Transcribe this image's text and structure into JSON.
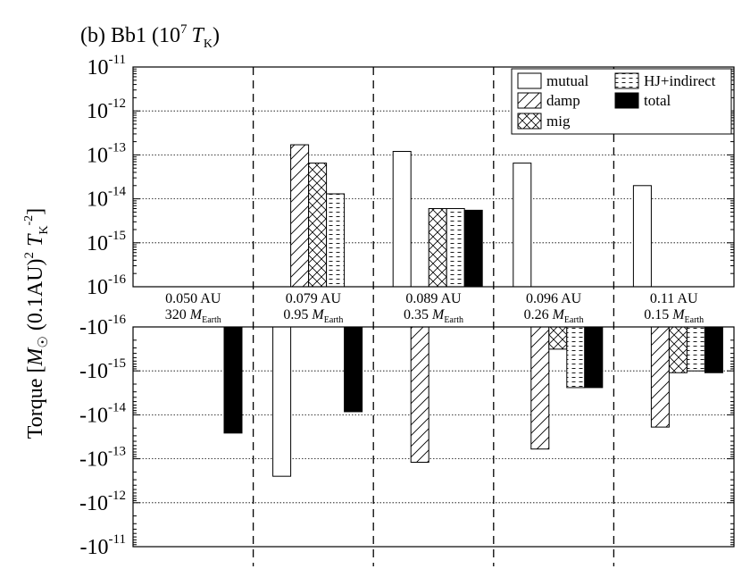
{
  "chart_data": {
    "type": "bar",
    "title": "(b) Bb1 (10",
    "title_exp": "7",
    "title_unit_italic": "T",
    "title_unit_sub": "K",
    "title_close": ")",
    "ylabel": {
      "prefix": "Torque [",
      "sun_symbol": "M",
      "sun_sub": "☉",
      "middle": " (0.1AU)",
      "middle_sup": "2",
      "unit_italic": " T",
      "unit_sub": "K",
      "unit_sup": "-2",
      "close": "]"
    },
    "yscale": "log",
    "upper_panel": {
      "ylim_exponents": [
        -16,
        -11
      ],
      "tick_labels": [
        {
          "base": "10",
          "exp": "-11"
        },
        {
          "base": "10",
          "exp": "-12"
        },
        {
          "base": "10",
          "exp": "-13"
        },
        {
          "base": "10",
          "exp": "-14"
        },
        {
          "base": "10",
          "exp": "-15"
        },
        {
          "base": "10",
          "exp": "-16"
        }
      ]
    },
    "lower_panel": {
      "ylim_exponents": [
        -16,
        -11
      ],
      "tick_labels": [
        {
          "base": "-10",
          "exp": "-16"
        },
        {
          "base": "-10",
          "exp": "-15"
        },
        {
          "base": "-10",
          "exp": "-14"
        },
        {
          "base": "-10",
          "exp": "-13"
        },
        {
          "base": "-10",
          "exp": "-12"
        },
        {
          "base": "-10",
          "exp": "-11"
        }
      ]
    },
    "grid": "dotted horizontal at each decade",
    "legend_position": "top-right",
    "series": [
      {
        "name": "mutual",
        "key": "mutual",
        "style": "open",
        "values": [
          0,
          -2.5e-13,
          1.2e-13,
          6.5e-14,
          2e-14
        ]
      },
      {
        "name": "damp",
        "key": "damp",
        "style": "diagonal-hatch",
        "values": [
          0,
          1.7e-13,
          -1.2e-13,
          -6e-14,
          -1.9e-14
        ]
      },
      {
        "name": "mig",
        "key": "mig",
        "style": "cross-hatch",
        "values": [
          0,
          6.5e-14,
          6e-15,
          -3.2e-16,
          -1.1e-15
        ]
      },
      {
        "name": "HJ+indirect",
        "key": "hj",
        "style": "dashed-hatch",
        "values": [
          0,
          1.3e-14,
          6e-15,
          -2.4e-15,
          -1e-15
        ]
      },
      {
        "name": "total",
        "key": "total",
        "style": "solid-black",
        "values": [
          -2.6e-14,
          -8.5e-15,
          5.5e-15,
          -2.4e-15,
          -1.1e-15
        ]
      }
    ],
    "planets": [
      {
        "a_label": "0.050 AU",
        "mass_value": "320",
        "mass_symbol": "M",
        "mass_sub": "Earth"
      },
      {
        "a_label": "0.079 AU",
        "mass_value": "0.95",
        "mass_symbol": "M",
        "mass_sub": "Earth"
      },
      {
        "a_label": "0.089 AU",
        "mass_value": "0.35",
        "mass_symbol": "M",
        "mass_sub": "Earth"
      },
      {
        "a_label": "0.096 AU",
        "mass_value": "0.26",
        "mass_symbol": "M",
        "mass_sub": "Earth"
      },
      {
        "a_label": "0.11 AU",
        "mass_value": "0.15",
        "mass_symbol": "M",
        "mass_sub": "Earth"
      }
    ],
    "colors": {
      "ink": "#000000",
      "background": "#ffffff",
      "grid": "#000000"
    }
  }
}
